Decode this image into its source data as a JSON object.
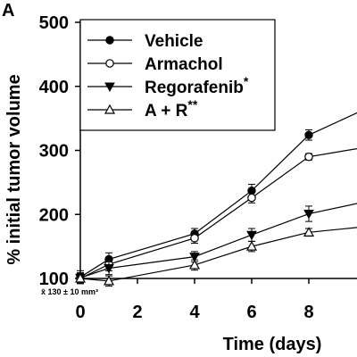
{
  "panel_label": "A",
  "baseline_note": "x̄ 130 ± 10 mm³",
  "chart_data": {
    "type": "line",
    "xlabel": "Time (days)",
    "ylabel": "% initial tumor volume",
    "xlim": [
      0,
      10
    ],
    "ylim": [
      100,
      500
    ],
    "x_ticks": [
      0,
      2,
      4,
      6,
      8
    ],
    "y_ticks": [
      100,
      200,
      300,
      400,
      500
    ],
    "grid": false,
    "legend_position": "top-left",
    "x": [
      0,
      1,
      4,
      6,
      8,
      10
    ],
    "series": [
      {
        "name": "Vehicle",
        "superscript": "",
        "marker": "circle-filled",
        "values": [
          102,
          130,
          170,
          237,
          324,
          365
        ],
        "errors": [
          10,
          10,
          8,
          10,
          8,
          null
        ]
      },
      {
        "name": "Armachol",
        "superscript": "",
        "marker": "circle-open",
        "values": [
          100,
          122,
          163,
          226,
          290,
          305
        ],
        "errors": [
          8,
          10,
          8,
          8,
          5,
          null
        ]
      },
      {
        "name": "Regorafenib",
        "superscript": "*",
        "marker": "triangle-down-filled",
        "values": [
          101,
          116,
          134,
          168,
          201,
          220
        ],
        "errors": [
          8,
          10,
          8,
          10,
          12,
          null
        ]
      },
      {
        "name": "A + R",
        "superscript": "**",
        "marker": "triangle-up-open",
        "values": [
          100,
          96,
          121,
          150,
          172,
          181
        ],
        "errors": [
          8,
          8,
          8,
          8,
          6,
          null
        ]
      }
    ]
  }
}
